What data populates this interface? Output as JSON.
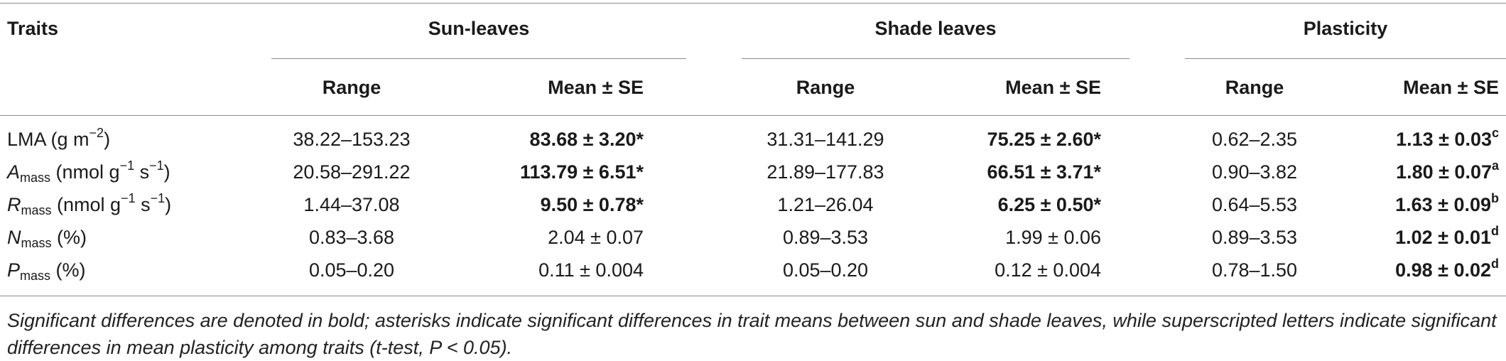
{
  "header": {
    "traits": "Traits",
    "groups": [
      "Sun-leaves",
      "Shade leaves",
      "Plasticity"
    ],
    "sub": {
      "range": "Range",
      "mean": "Mean ± SE"
    }
  },
  "rows": [
    {
      "trait": {
        "sym": "LMA",
        "sub": "",
        "unit_pre": " (g m",
        "unit_sup1": "−2",
        "unit_mid": "",
        "unit_sup2": "",
        "unit_post": ")"
      },
      "sun_range": "38.22–153.23",
      "sun_mean": "83.68 ± 3.20*",
      "shade_range": "31.31–141.29",
      "shade_mean": "75.25 ± 2.60*",
      "plast_range": "0.62–2.35",
      "plast_mean": "1.13 ± 0.03",
      "plast_sup": "c",
      "sun_bold": true,
      "shade_bold": true
    },
    {
      "trait": {
        "sym": "A",
        "sub": "mass",
        "unit_pre": " (nmol g",
        "unit_sup1": "−1",
        "unit_mid": " s",
        "unit_sup2": "−1",
        "unit_post": ")"
      },
      "sun_range": "20.58–291.22",
      "sun_mean": "113.79 ± 6.51*",
      "shade_range": "21.89–177.83",
      "shade_mean": "66.51 ± 3.71*",
      "plast_range": "0.90–3.82",
      "plast_mean": "1.80 ± 0.07",
      "plast_sup": "a",
      "sun_bold": true,
      "shade_bold": true
    },
    {
      "trait": {
        "sym": "R",
        "sub": "mass",
        "unit_pre": " (nmol g",
        "unit_sup1": "−1",
        "unit_mid": " s",
        "unit_sup2": "−1",
        "unit_post": ")"
      },
      "sun_range": "1.44–37.08",
      "sun_mean": "9.50 ± 0.78*",
      "shade_range": "1.21–26.04",
      "shade_mean": "6.25 ± 0.50*",
      "plast_range": "0.64–5.53",
      "plast_mean": "1.63 ± 0.09",
      "plast_sup": "b",
      "sun_bold": true,
      "shade_bold": true
    },
    {
      "trait": {
        "sym": "N",
        "sub": "mass",
        "unit_pre": " (%)",
        "unit_sup1": "",
        "unit_mid": "",
        "unit_sup2": "",
        "unit_post": ""
      },
      "sun_range": "0.83–3.68",
      "sun_mean": "2.04 ± 0.07",
      "shade_range": "0.89–3.53",
      "shade_mean": "1.99 ± 0.06",
      "plast_range": "0.89–3.53",
      "plast_mean": "1.02 ± 0.01",
      "plast_sup": "d",
      "sun_bold": false,
      "shade_bold": false
    },
    {
      "trait": {
        "sym": "P",
        "sub": "mass",
        "unit_pre": " (%)",
        "unit_sup1": "",
        "unit_mid": "",
        "unit_sup2": "",
        "unit_post": ""
      },
      "sun_range": "0.05–0.20",
      "sun_mean": "0.11 ± 0.004",
      "shade_range": "0.05–0.20",
      "shade_mean": "0.12 ± 0.004",
      "plast_range": "0.78–1.50",
      "plast_mean": "0.98 ± 0.02",
      "plast_sup": "d",
      "sun_bold": false,
      "shade_bold": false
    }
  ],
  "footnote": "Significant differences are denoted in bold; asterisks indicate significant differences in trait means between sun and shade leaves, while superscripted letters indicate significant differences in mean plasticity among traits (t-test, P < 0.05)."
}
